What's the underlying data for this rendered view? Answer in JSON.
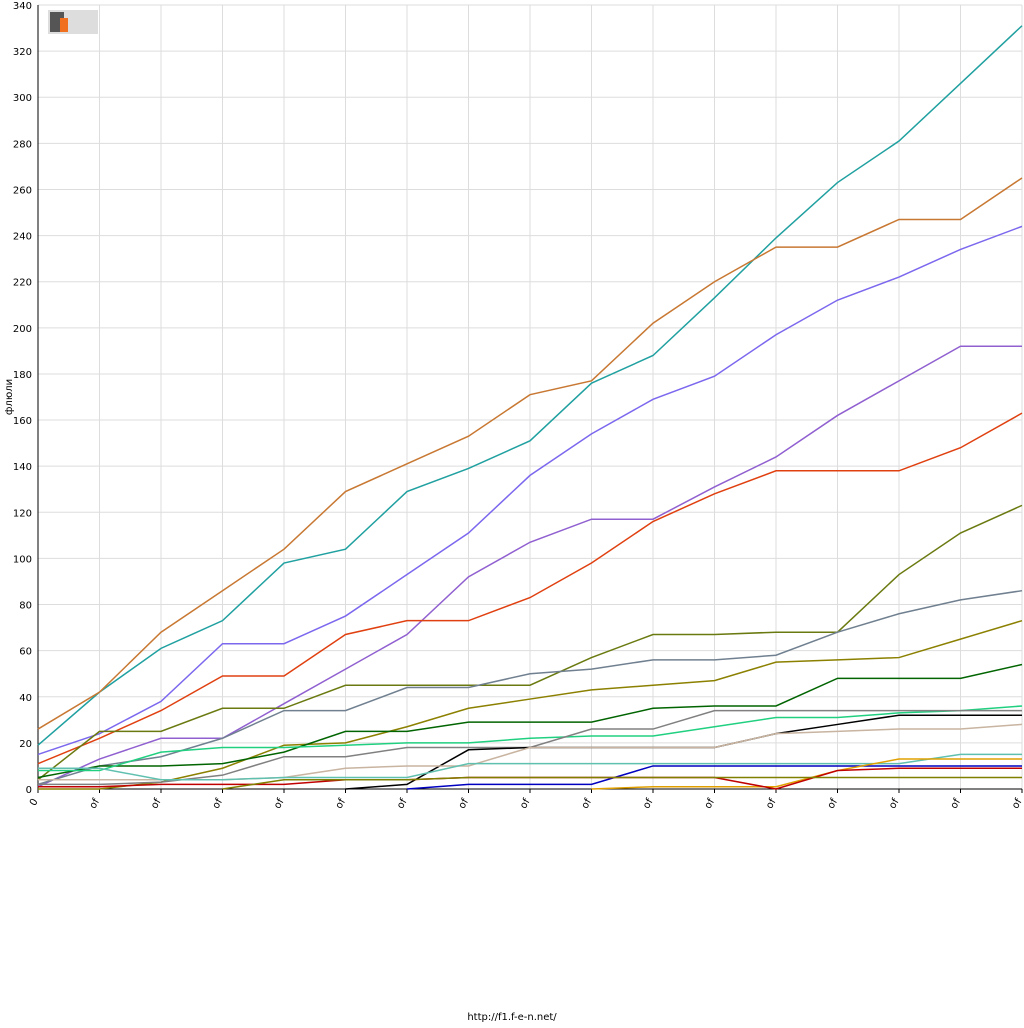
{
  "chart_data": {
    "type": "line",
    "y_label": "флюли",
    "footer": "http://f1.f-e-n.net/",
    "categories": [
      "0",
      "of",
      "of",
      "of",
      "of",
      "of",
      "of",
      "of",
      "of",
      "of",
      "of",
      "of",
      "of",
      "of",
      "of",
      "of",
      "of"
    ],
    "ylim": [
      0,
      340
    ],
    "yticks": [
      0,
      20,
      40,
      60,
      80,
      100,
      120,
      140,
      160,
      180,
      200,
      220,
      240,
      260,
      280,
      300,
      320,
      340
    ],
    "grid": true,
    "series": [
      {
        "color": "#20a0a0",
        "values": [
          19,
          42,
          61,
          73,
          98,
          104,
          129,
          139,
          151,
          176,
          188,
          213,
          239,
          263,
          281,
          306,
          331
        ]
      },
      {
        "color": "#c87832",
        "values": [
          26,
          42,
          68,
          86,
          104,
          129,
          141,
          153,
          171,
          177,
          202,
          220,
          235,
          235,
          247,
          247,
          265
        ]
      },
      {
        "color": "#7b68ee",
        "values": [
          15,
          24,
          38,
          63,
          63,
          75,
          93,
          111,
          136,
          154,
          169,
          179,
          197,
          212,
          222,
          234,
          244
        ]
      },
      {
        "color": "#9060d0",
        "values": [
          1,
          13,
          22,
          22,
          37,
          52,
          67,
          92,
          107,
          117,
          117,
          131,
          144,
          162,
          177,
          192,
          192
        ]
      },
      {
        "color": "#e04010",
        "values": [
          11,
          22,
          34,
          49,
          49,
          67,
          73,
          73,
          83,
          98,
          116,
          128,
          138,
          138,
          138,
          148,
          163
        ]
      },
      {
        "color": "#6b7a10",
        "values": [
          4,
          25,
          25,
          35,
          35,
          45,
          45,
          45,
          45,
          57,
          67,
          67,
          68,
          68,
          93,
          111,
          123
        ]
      },
      {
        "color": "#708090",
        "values": [
          2,
          10,
          14,
          22,
          34,
          34,
          44,
          44,
          50,
          52,
          56,
          56,
          58,
          68,
          76,
          82,
          86
        ]
      },
      {
        "color": "#8b8000",
        "values": [
          0,
          0,
          3,
          9,
          19,
          20,
          27,
          35,
          39,
          43,
          45,
          47,
          55,
          56,
          57,
          65,
          73
        ]
      },
      {
        "color": "#006400",
        "values": [
          5,
          10,
          10,
          11,
          16,
          25,
          25,
          29,
          29,
          29,
          35,
          36,
          36,
          48,
          48,
          48,
          54
        ]
      },
      {
        "color": "#20d080",
        "values": [
          8,
          8,
          16,
          18,
          18,
          19,
          20,
          20,
          22,
          23,
          23,
          27,
          31,
          31,
          33,
          34,
          36
        ]
      },
      {
        "color": "#808080",
        "values": [
          2,
          2,
          3,
          6,
          14,
          14,
          18,
          18,
          18,
          26,
          26,
          34,
          34,
          34,
          34,
          34,
          34
        ]
      },
      {
        "color": "#000000",
        "values": [
          null,
          null,
          null,
          null,
          null,
          0,
          2,
          17,
          18,
          18,
          18,
          18,
          24,
          28,
          32,
          32,
          32
        ]
      },
      {
        "color": "#c8b4a0",
        "values": [
          4,
          4,
          4,
          4,
          5,
          9,
          10,
          10,
          18,
          18,
          18,
          18,
          24,
          25,
          26,
          26,
          28
        ]
      },
      {
        "color": "#60c0b0",
        "values": [
          9,
          9,
          4,
          4,
          5,
          5,
          5,
          11,
          11,
          11,
          11,
          11,
          11,
          11,
          11,
          15,
          15
        ]
      },
      {
        "color": "#0000c0",
        "values": [
          null,
          null,
          null,
          null,
          null,
          null,
          0,
          2,
          2,
          2,
          10,
          10,
          10,
          10,
          10,
          10,
          10
        ]
      },
      {
        "color": "#e0a000",
        "values": [
          null,
          null,
          null,
          null,
          null,
          null,
          null,
          null,
          null,
          0,
          1,
          1,
          1,
          8,
          13,
          13,
          13
        ]
      },
      {
        "color": "#c00000",
        "values": [
          1,
          1,
          2,
          2,
          2,
          4,
          4,
          5,
          5,
          5,
          5,
          5,
          0,
          8,
          9,
          9,
          9
        ]
      },
      {
        "color": "#808000",
        "values": [
          null,
          null,
          null,
          0,
          4,
          4,
          4,
          5,
          5,
          5,
          5,
          5,
          5,
          5,
          5,
          5,
          5
        ]
      }
    ]
  }
}
